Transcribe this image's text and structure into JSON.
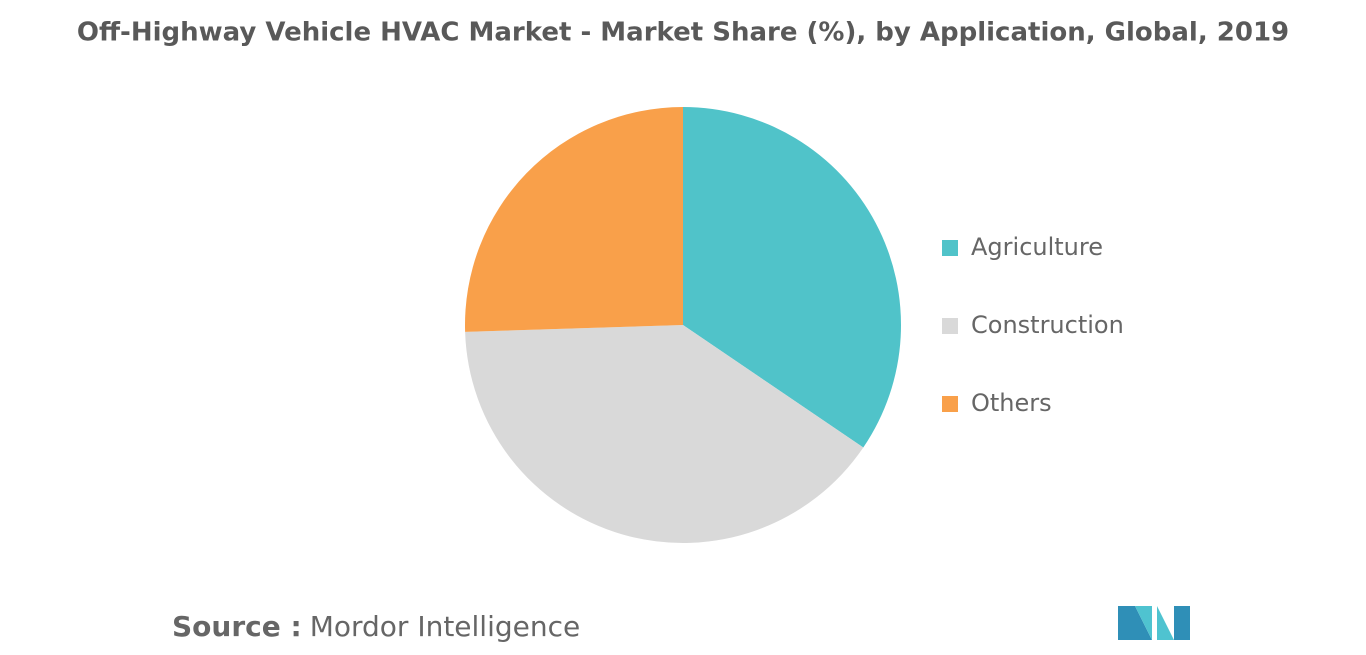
{
  "chart_data": {
    "type": "pie",
    "title": "Off-Highway Vehicle HVAC Market - Market Share (%), by Application, Global, 2019",
    "categories": [
      "Agriculture",
      "Construction",
      "Others"
    ],
    "values": [
      34.5,
      40,
      25.5
    ],
    "colors": [
      "#50c3c9",
      "#d9d9d9",
      "#f9a04a"
    ],
    "legend": "right"
  },
  "source": {
    "label": "Source :",
    "text": "Mordor Intelligence"
  }
}
